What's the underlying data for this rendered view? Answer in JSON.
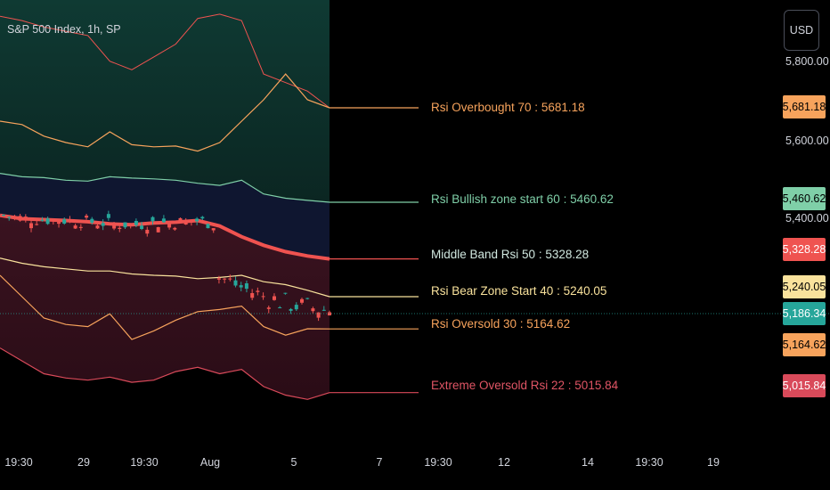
{
  "header": {
    "title": "S&P 500 Index, 1h, SP"
  },
  "currency_button": {
    "label": "USD"
  },
  "price_axis": {
    "cut_top_label": "5,800.00",
    "plain_labels": [
      "5,600.00",
      "5,400.00"
    ],
    "current_price": "5,186.34"
  },
  "chart_data": {
    "type": "candlestick",
    "title": "S&P 500 Index, 1h, SP",
    "x_tick_labels": [
      "19:30",
      "29",
      "19:30",
      "Aug",
      "5",
      "7",
      "19:30",
      "12",
      "14",
      "19:30",
      "19"
    ],
    "y_tick_labels": [
      "5,800.00",
      "5,600.00",
      "5,400.00"
    ],
    "current_price": 5186.34,
    "levels": [
      {
        "name": "Rsi Overbought 70",
        "label": "Rsi Overbought 70 : 5681.18",
        "value": 5681.18,
        "tag": "5,681.18",
        "color": "#f7a35c"
      },
      {
        "name": "Rsi Bullish zone start 60",
        "label": "Rsi Bullish zone start 60 :  5460.62",
        "value": 5460.62,
        "tag": "5,460.62",
        "color": "#7fcfa8"
      },
      {
        "name": "Middle Band Rsi 50",
        "label": "Middle Band Rsi 50 : 5328.28",
        "value": 5328.28,
        "tag": "5,328.28",
        "color": "#ef5350"
      },
      {
        "name": "Rsi Bear Zone Start 40",
        "label": "Rsi Bear Zone Start 40 : 5240.05",
        "value": 5240.05,
        "tag": "5,240.05",
        "color": "#f9e29c"
      },
      {
        "name": "Rsi Oversold 30",
        "label": "Rsi Oversold 30 :  5164.62",
        "value": 5164.62,
        "tag": "5,164.62",
        "color": "#f7a35c"
      },
      {
        "name": "Extreme Oversold Rsi 22",
        "label": "Extreme Oversold Rsi 22 : 5015.84",
        "value": 5015.84,
        "tag": "5,015.84",
        "color": "#d94a5a"
      }
    ],
    "last_price_tag": {
      "value": 5186.34,
      "tag": "5,186.34",
      "color": "#26a69a"
    },
    "band_samples_price": {
      "upper_top": [
        5895,
        5885,
        5870,
        5860,
        5850,
        5790,
        5770,
        5800,
        5830,
        5890,
        5900,
        5885,
        5760,
        5740,
        5720,
        5681.18
      ],
      "overbought": [
        5650,
        5642,
        5615,
        5600,
        5590,
        5625,
        5595,
        5590,
        5592,
        5580,
        5600,
        5650,
        5700,
        5760,
        5700,
        5681.18
      ],
      "bullish": [
        5528,
        5520,
        5518,
        5512,
        5510,
        5520,
        5517,
        5515,
        5512,
        5505,
        5500,
        5512,
        5480,
        5470,
        5465,
        5460.62
      ],
      "middle": [
        5430,
        5422,
        5420,
        5418,
        5415,
        5410,
        5408,
        5412,
        5414,
        5418,
        5405,
        5380,
        5360,
        5345,
        5335,
        5328.28
      ],
      "bear": [
        5330,
        5318,
        5310,
        5305,
        5300,
        5300,
        5293,
        5290,
        5288,
        5282,
        5285,
        5290,
        5275,
        5268,
        5255,
        5240.05
      ],
      "oversold": [
        5290,
        5240,
        5190,
        5175,
        5170,
        5200,
        5140,
        5160,
        5185,
        5205,
        5210,
        5218,
        5170,
        5150,
        5165,
        5164.62
      ],
      "extreme": [
        5120,
        5090,
        5060,
        5050,
        5045,
        5052,
        5040,
        5045,
        5065,
        5075,
        5060,
        5070,
        5030,
        5010,
        5000,
        5015.84
      ]
    }
  }
}
